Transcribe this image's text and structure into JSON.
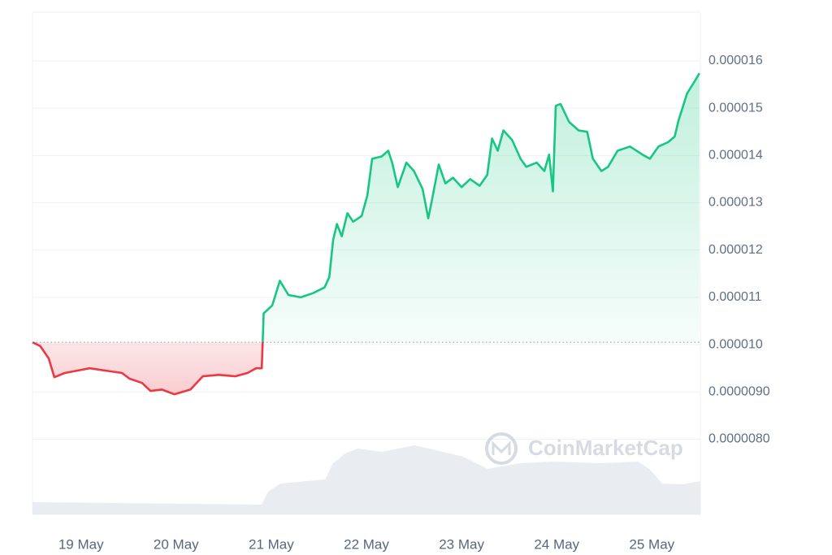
{
  "chart_data": {
    "type": "line",
    "watermark": "CoinMarketCap",
    "x": [
      18.49,
      18.57,
      18.66,
      18.72,
      18.83,
      18.96,
      19.09,
      19.26,
      19.43,
      19.51,
      19.64,
      19.73,
      19.85,
      19.98,
      20.15,
      20.28,
      20.45,
      20.62,
      20.75,
      20.84,
      20.9,
      20.92,
      21.01,
      21.09,
      21.18,
      21.31,
      21.44,
      21.56,
      21.61,
      21.65,
      21.69,
      21.74,
      21.8,
      21.86,
      21.95,
      22.01,
      22.06,
      22.16,
      22.23,
      22.27,
      22.33,
      22.42,
      22.5,
      22.59,
      22.65,
      22.69,
      22.76,
      22.83,
      22.91,
      23.0,
      23.09,
      23.19,
      23.27,
      23.32,
      23.38,
      23.44,
      23.53,
      23.62,
      23.68,
      23.79,
      23.87,
      23.92,
      23.96,
      23.99,
      24.04,
      24.13,
      24.23,
      24.32,
      24.38,
      24.47,
      24.54,
      24.64,
      24.77,
      24.9,
      24.98,
      25.07,
      25.17,
      25.24,
      25.28,
      25.37,
      25.45,
      25.5
    ],
    "values": [
      1.005e-05,
      9.97e-06,
      9.71e-06,
      9.31e-06,
      9.4e-06,
      9.45e-06,
      9.5e-06,
      9.45e-06,
      9.4e-06,
      9.28e-06,
      9.19e-06,
      9.02e-06,
      9.05e-06,
      8.95e-06,
      9.05e-06,
      9.33e-06,
      9.36e-06,
      9.33e-06,
      9.4e-06,
      9.5e-06,
      9.5e-06,
      1.066e-05,
      1.083e-05,
      1.135e-05,
      1.105e-05,
      1.1e-05,
      1.109e-05,
      1.121e-05,
      1.143e-05,
      1.221e-05,
      1.255e-05,
      1.229e-05,
      1.278e-05,
      1.26e-05,
      1.272e-05,
      1.316e-05,
      1.393e-05,
      1.398e-05,
      1.41e-05,
      1.385e-05,
      1.333e-05,
      1.385e-05,
      1.367e-05,
      1.329e-05,
      1.267e-05,
      1.307e-05,
      1.381e-05,
      1.341e-05,
      1.353e-05,
      1.333e-05,
      1.35e-05,
      1.336e-05,
      1.359e-05,
      1.436e-05,
      1.41e-05,
      1.453e-05,
      1.433e-05,
      1.393e-05,
      1.376e-05,
      1.385e-05,
      1.367e-05,
      1.402e-05,
      1.324e-05,
      1.505e-05,
      1.509e-05,
      1.471e-05,
      1.453e-05,
      1.45e-05,
      1.393e-05,
      1.367e-05,
      1.376e-05,
      1.41e-05,
      1.419e-05,
      1.402e-05,
      1.393e-05,
      1.419e-05,
      1.428e-05,
      1.44e-05,
      1.474e-05,
      1.531e-05,
      1.557e-05,
      1.574e-05
    ],
    "baseline": 1.005e-05,
    "color_up": "#16c784",
    "color_down": "#ea3943",
    "xlim": [
      18.49,
      25.51
    ],
    "xticks": [
      {
        "value": 19,
        "label": "19 May"
      },
      {
        "value": 20,
        "label": "20 May"
      },
      {
        "value": 21,
        "label": "21 May"
      },
      {
        "value": 22,
        "label": "22 May"
      },
      {
        "value": 23,
        "label": "23 May"
      },
      {
        "value": 24,
        "label": "24 May"
      },
      {
        "value": 25,
        "label": "25 May"
      }
    ],
    "ylim": [
      6.41e-06,
      1.703e-05
    ],
    "yticks": [
      {
        "value": 1.6e-05,
        "label": "0.000016"
      },
      {
        "value": 1.5e-05,
        "label": "0.000015"
      },
      {
        "value": 1.4e-05,
        "label": "0.000014"
      },
      {
        "value": 1.3e-05,
        "label": "0.000013"
      },
      {
        "value": 1.2e-05,
        "label": "0.000012"
      },
      {
        "value": 1.1e-05,
        "label": "0.000011"
      },
      {
        "value": 1e-05,
        "label": "0.000010"
      },
      {
        "value": 9e-06,
        "label": "0.0000090"
      },
      {
        "value": 8e-06,
        "label": "0.0000080"
      }
    ],
    "grid": true
  }
}
